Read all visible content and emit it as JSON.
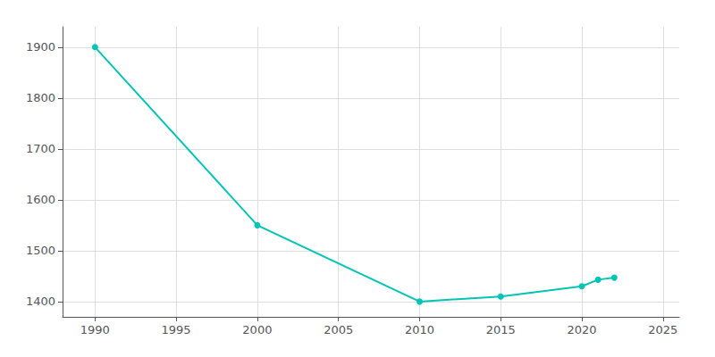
{
  "chart_data": {
    "type": "line",
    "x": [
      1990,
      2000,
      2010,
      2015,
      2020,
      2021,
      2022
    ],
    "values": [
      1900,
      1550,
      1400,
      1410,
      1430,
      1443,
      1447
    ],
    "color": "#00C5B5",
    "marker": "circle",
    "xlim": [
      1988,
      2026
    ],
    "ylim": [
      1370,
      1940
    ],
    "xticks": [
      1990,
      1995,
      2000,
      2005,
      2010,
      2015,
      2020,
      2025
    ],
    "yticks": [
      1400,
      1500,
      1600,
      1700,
      1800,
      1900
    ],
    "grid": true
  }
}
